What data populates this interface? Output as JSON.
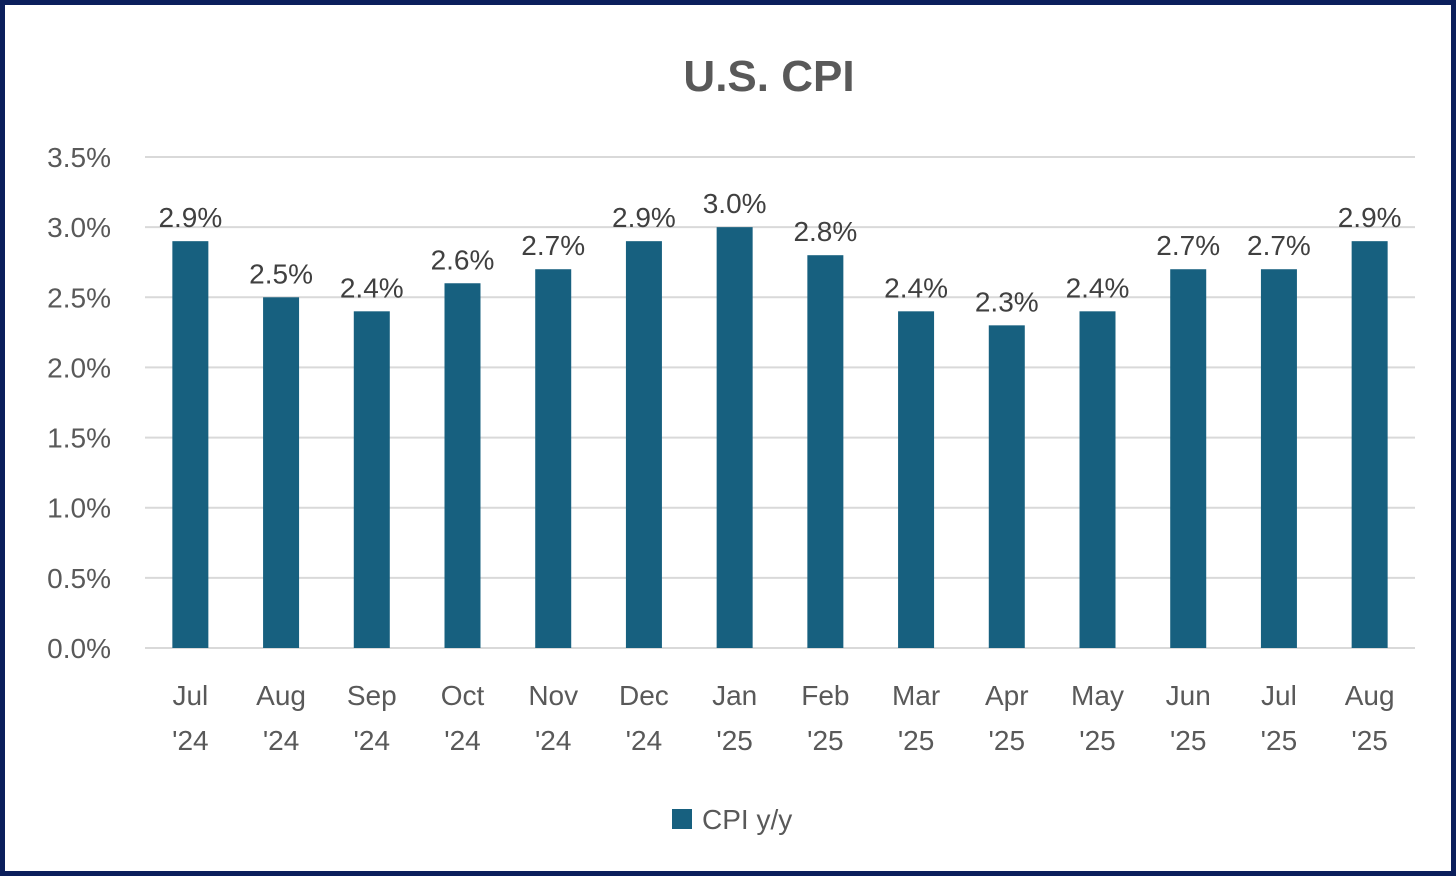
{
  "chart_data": {
    "type": "bar",
    "title": "U.S. CPI",
    "xlabel": "",
    "ylabel": "",
    "categories": [
      [
        "Jul",
        "'24"
      ],
      [
        "Aug",
        "'24"
      ],
      [
        "Sep",
        "'24"
      ],
      [
        "Oct",
        "'24"
      ],
      [
        "Nov",
        "'24"
      ],
      [
        "Dec",
        "'24"
      ],
      [
        "Jan",
        "'25"
      ],
      [
        "Feb",
        "'25"
      ],
      [
        "Mar",
        "'25"
      ],
      [
        "Apr",
        "'25"
      ],
      [
        "May",
        "'25"
      ],
      [
        "Jun",
        "'25"
      ],
      [
        "Jul",
        "'25"
      ],
      [
        "Aug",
        "'25"
      ]
    ],
    "series": [
      {
        "name": "CPI y/y",
        "color": "#17607f",
        "values": [
          2.9,
          2.5,
          2.4,
          2.6,
          2.7,
          2.9,
          3.0,
          2.8,
          2.4,
          2.3,
          2.4,
          2.7,
          2.7,
          2.9
        ],
        "data_labels": [
          "2.9%",
          "2.5%",
          "2.4%",
          "2.6%",
          "2.7%",
          "2.9%",
          "3.0%",
          "2.8%",
          "2.4%",
          "2.3%",
          "2.4%",
          "2.7%",
          "2.7%",
          "2.9%"
        ]
      }
    ],
    "ylim": [
      0,
      3.5
    ],
    "yticks": [
      0.0,
      0.5,
      1.0,
      1.5,
      2.0,
      2.5,
      3.0,
      3.5
    ],
    "ytick_labels": [
      "0.0%",
      "0.5%",
      "1.0%",
      "1.5%",
      "2.0%",
      "2.5%",
      "3.0%",
      "3.5%"
    ],
    "grid": true,
    "legend_position": "bottom-center"
  },
  "colors": {
    "border": "#0b1f5c",
    "gridline": "#d9d9d9",
    "text": "#595959"
  }
}
